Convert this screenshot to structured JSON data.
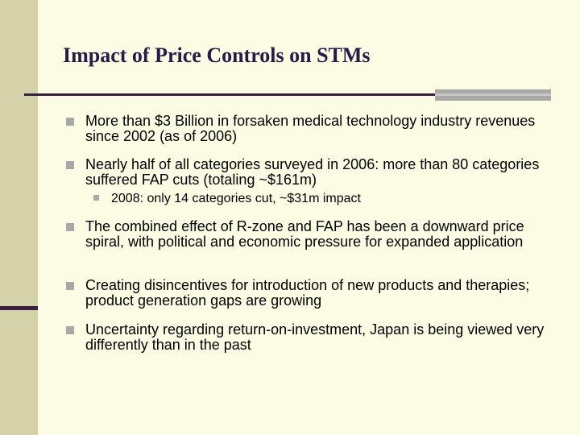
{
  "slide": {
    "title": "Impact of Price Controls on STMs",
    "bullets": [
      {
        "text": "More than $3 Billion in forsaken medical technology industry revenues since 2002 (as of 2006)"
      },
      {
        "text": "Nearly half of all categories surveyed in 2006: more than 80 categories suffered FAP cuts (totaling ~$161m)"
      },
      {
        "text": "The combined effect of R-zone and FAP has been a downward price spiral, with political and economic pressure for expanded application"
      },
      {
        "text": "Creating disincentives for introduction of new products and therapies; product generation gaps are growing"
      },
      {
        "text": "Uncertainty regarding return-on-investment, Japan is being viewed very differently than in the past"
      }
    ],
    "sub_bullets": [
      {
        "text": "2008: only 14 categories cut, ~$31m impact"
      }
    ]
  },
  "colors": {
    "background": "#fcfce4",
    "left_band": "#d4d2a8",
    "title": "#2a1a4a",
    "rule": "#3a1f3f",
    "bullet_marker": "#a8a8a8"
  }
}
